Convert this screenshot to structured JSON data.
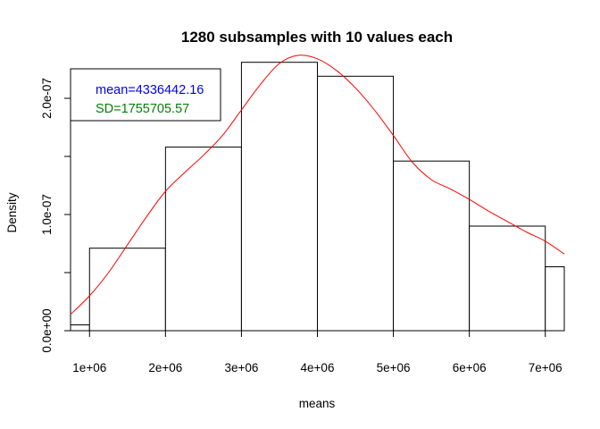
{
  "chart_data": {
    "type": "histogram",
    "title": "1280 subsamples with 10 values each",
    "xlabel": "means",
    "ylabel": "Density",
    "xlim": [
      750000,
      7250000
    ],
    "ylim": [
      0,
      2.4e-07
    ],
    "x_ticks": [
      {
        "value": 1000000,
        "label": "1e+06"
      },
      {
        "value": 2000000,
        "label": "2e+06"
      },
      {
        "value": 3000000,
        "label": "3e+06"
      },
      {
        "value": 4000000,
        "label": "4e+06"
      },
      {
        "value": 5000000,
        "label": "5e+06"
      },
      {
        "value": 6000000,
        "label": "6e+06"
      },
      {
        "value": 7000000,
        "label": "7e+06"
      }
    ],
    "y_ticks": [
      {
        "value": 0,
        "label": "0.0e+00"
      },
      {
        "value": 5e-08,
        "label": ""
      },
      {
        "value": 1e-07,
        "label": "1.0e-07"
      },
      {
        "value": 1.5e-07,
        "label": ""
      },
      {
        "value": 2e-07,
        "label": "2.0e-07"
      }
    ],
    "bins": [
      {
        "x0": 0,
        "x1": 1000000,
        "density": 5e-09
      },
      {
        "x0": 1000000,
        "x1": 2000000,
        "density": 7.1e-08
      },
      {
        "x0": 2000000,
        "x1": 3000000,
        "density": 1.58e-07
      },
      {
        "x0": 3000000,
        "x1": 4000000,
        "density": 2.31e-07
      },
      {
        "x0": 4000000,
        "x1": 5000000,
        "density": 2.19e-07
      },
      {
        "x0": 5000000,
        "x1": 6000000,
        "density": 1.46e-07
      },
      {
        "x0": 6000000,
        "x1": 7000000,
        "density": 9e-08
      },
      {
        "x0": 7000000,
        "x1": 8000000,
        "density": 5.5e-08
      }
    ],
    "density_curve": {
      "color": "#ff0000",
      "x": [
        750000,
        1000000,
        1250000,
        1500000,
        1750000,
        2000000,
        2250000,
        2500000,
        2750000,
        3000000,
        3250000,
        3500000,
        3750000,
        4000000,
        4250000,
        4500000,
        4750000,
        5000000,
        5250000,
        5500000,
        5750000,
        6000000,
        6250000,
        6500000,
        6750000,
        7000000,
        7250000
      ],
      "y": [
        1.4e-08,
        3e-08,
        5e-08,
        7.4e-08,
        9.8e-08,
        1.2e-07,
        1.36e-07,
        1.51e-07,
        1.68e-07,
        1.9e-07,
        2.12e-07,
        2.3e-07,
        2.37e-07,
        2.34e-07,
        2.24e-07,
        2.09e-07,
        1.9e-07,
        1.68e-07,
        1.45e-07,
        1.3e-07,
        1.22e-07,
        1.13e-07,
        1.03e-07,
        9.4e-08,
        8.5e-08,
        7.7e-08,
        6.6e-08
      ]
    },
    "legend": {
      "position": "top-left",
      "entries": [
        {
          "text": "mean=4336442.16",
          "color": "#0000ff"
        },
        {
          "text": "SD=1755705.57",
          "color": "#008000"
        }
      ]
    },
    "grid": false
  }
}
